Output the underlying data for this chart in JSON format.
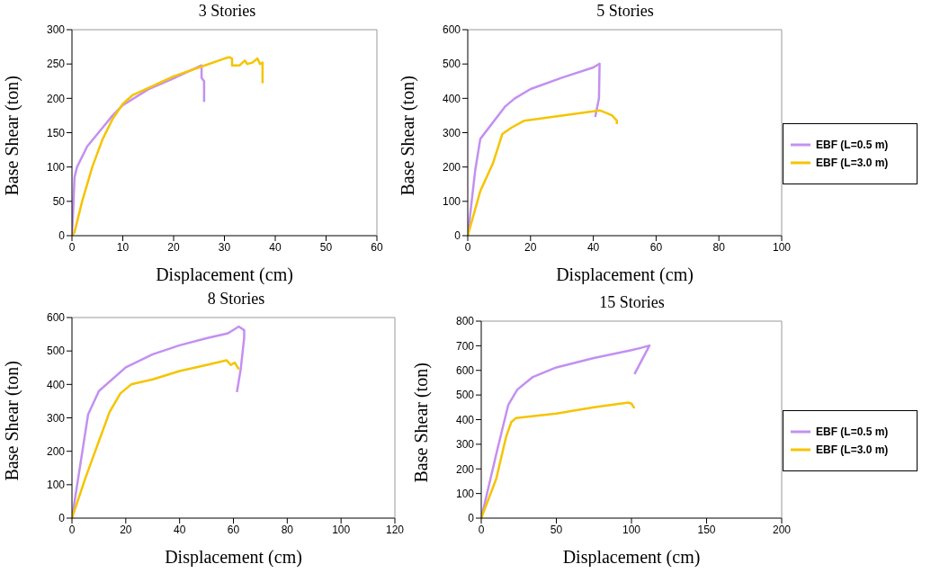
{
  "chart_data": [
    {
      "type": "line",
      "title": "3 Stories",
      "xlabel": "Displacement (cm)",
      "ylabel": "Base Shear (ton)",
      "xlim": [
        0,
        60
      ],
      "xticks": [
        0,
        10,
        20,
        30,
        40,
        50,
        60
      ],
      "ylim": [
        0,
        300
      ],
      "yticks": [
        0,
        50,
        100,
        150,
        200,
        250,
        300
      ],
      "grid": false,
      "legend": false,
      "marker": "none",
      "line_style": "solid",
      "series": [
        {
          "color": "#c390f0",
          "x": [
            0,
            0.2,
            0.5,
            1,
            3,
            5,
            8,
            10,
            15,
            20,
            25.5,
            25.5,
            26,
            26
          ],
          "values": [
            0,
            30,
            85,
            100,
            130,
            148,
            175,
            190,
            213,
            229,
            248,
            230,
            225,
            195
          ]
        },
        {
          "color": "#f5c400",
          "x": [
            0,
            0.5,
            2,
            4,
            6,
            8,
            10,
            12,
            15,
            20,
            25,
            30,
            31,
            31.5,
            31.5,
            33,
            34,
            34.5,
            35.5,
            36.5,
            37,
            37.5,
            37.5
          ],
          "values": [
            0,
            5,
            50,
            100,
            140,
            170,
            192,
            205,
            215,
            232,
            245,
            258,
            260,
            258,
            248,
            248,
            255,
            250,
            252,
            258,
            250,
            252,
            222
          ]
        }
      ]
    },
    {
      "type": "line",
      "title": "5 Stories",
      "xlabel": "Displacement (cm)",
      "ylabel": "Base Shear (ton)",
      "xlim": [
        0,
        100
      ],
      "xticks": [
        0,
        20,
        40,
        60,
        80,
        100
      ],
      "ylim": [
        0,
        600
      ],
      "yticks": [
        0,
        100,
        200,
        300,
        400,
        500,
        600
      ],
      "grid": false,
      "legend": "right",
      "marker": "none",
      "line_style": "solid",
      "series": [
        {
          "name": "EBF (L=0.5 m)",
          "color": "#c390f0",
          "x": [
            0,
            2.4,
            4,
            12,
            15,
            20,
            30,
            40,
            42,
            41.8,
            40.6
          ],
          "values": [
            0,
            192,
            282,
            377,
            400,
            427,
            460,
            490,
            501,
            400,
            346
          ]
        },
        {
          "name": "EBF (L=3.0 m)",
          "color": "#f5c400",
          "x": [
            0,
            4,
            8,
            11,
            14,
            18,
            30,
            40,
            42,
            44,
            46,
            47.5,
            47.5
          ],
          "values": [
            0,
            130,
            210,
            296,
            315,
            335,
            350,
            362,
            365,
            358,
            350,
            335,
            325
          ]
        }
      ]
    },
    {
      "type": "line",
      "title": "8 Stories",
      "xlabel": "Displacement (cm)",
      "ylabel": "Base Shear (ton)",
      "xlim": [
        0,
        120
      ],
      "xticks": [
        0,
        20,
        40,
        60,
        80,
        100,
        120
      ],
      "ylim": [
        0,
        600
      ],
      "yticks": [
        0,
        100,
        200,
        300,
        400,
        500,
        600
      ],
      "grid": false,
      "legend": false,
      "marker": "none",
      "line_style": "solid",
      "series": [
        {
          "color": "#c390f0",
          "x": [
            0,
            6,
            10,
            20,
            30,
            40,
            50,
            58,
            62,
            64,
            64,
            62.7,
            61.3
          ],
          "values": [
            0,
            310,
            380,
            451,
            490,
            517,
            538,
            553,
            573,
            562,
            540,
            445,
            377
          ]
        },
        {
          "color": "#f5c400",
          "x": [
            0,
            5,
            10,
            14,
            18,
            22,
            30,
            40,
            50,
            57.5,
            59,
            60.5,
            62
          ],
          "values": [
            0,
            120,
            230,
            318,
            373,
            400,
            415,
            440,
            458,
            472,
            458,
            465,
            445
          ]
        }
      ]
    },
    {
      "type": "line",
      "title": "15 Stories",
      "xlabel": "Displacement (cm)",
      "ylabel": "Base Shear (ton)",
      "xlim": [
        0,
        200
      ],
      "xticks": [
        0,
        50,
        100,
        150,
        200
      ],
      "ylim": [
        0,
        800
      ],
      "yticks": [
        0,
        100,
        200,
        300,
        400,
        500,
        600,
        700,
        800
      ],
      "grid": false,
      "legend": "right",
      "marker": "none",
      "line_style": "solid",
      "series": [
        {
          "name": "EBF (L=0.5 m)",
          "color": "#c390f0",
          "x": [
            0,
            10,
            18,
            24,
            34,
            50,
            75,
            100,
            106,
            112,
            102
          ],
          "values": [
            0,
            260,
            460,
            522,
            572,
            612,
            650,
            682,
            691,
            701,
            585
          ]
        },
        {
          "name": "EBF (L=3.0 m)",
          "color": "#f5c400",
          "x": [
            0,
            10,
            16.5,
            20,
            23,
            50,
            75,
            98,
            100,
            101,
            102
          ],
          "values": [
            0,
            160,
            329,
            390,
            406,
            425,
            450,
            469,
            465,
            455,
            447
          ]
        }
      ]
    }
  ]
}
